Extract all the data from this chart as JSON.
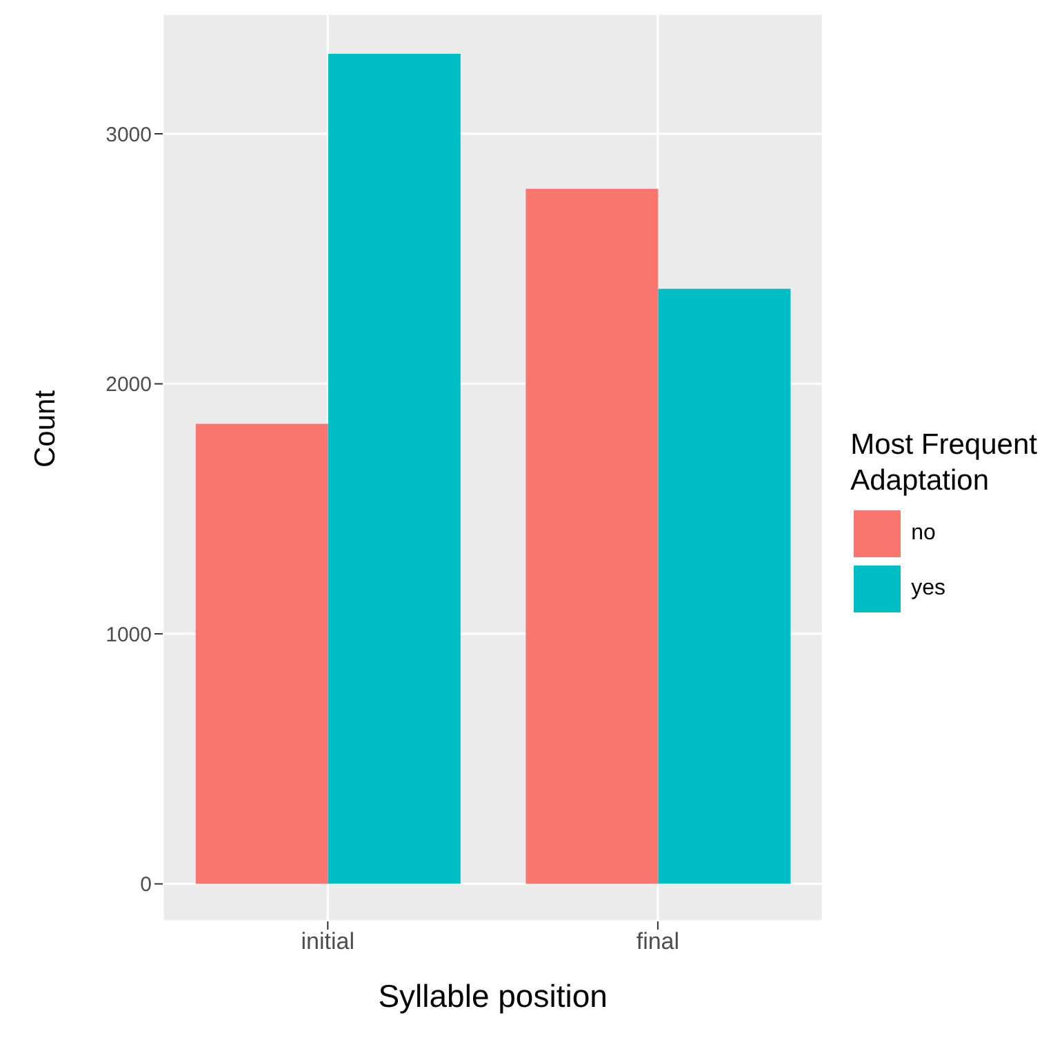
{
  "chart_data": {
    "type": "bar",
    "xlabel": "Syllable position",
    "ylabel": "Count",
    "legend_title": "Most Frequent Adaptation",
    "categories": [
      "initial",
      "final"
    ],
    "series": [
      {
        "name": "no",
        "color": "#f8766d",
        "values": [
          1840,
          2780
        ]
      },
      {
        "name": "yes",
        "color": "#00bfc4",
        "values": [
          3320,
          2380
        ]
      }
    ],
    "ylim": [
      -150,
      3480
    ],
    "yticks": [
      0,
      1000,
      2000,
      3000
    ],
    "grid": true,
    "legend": "right"
  }
}
